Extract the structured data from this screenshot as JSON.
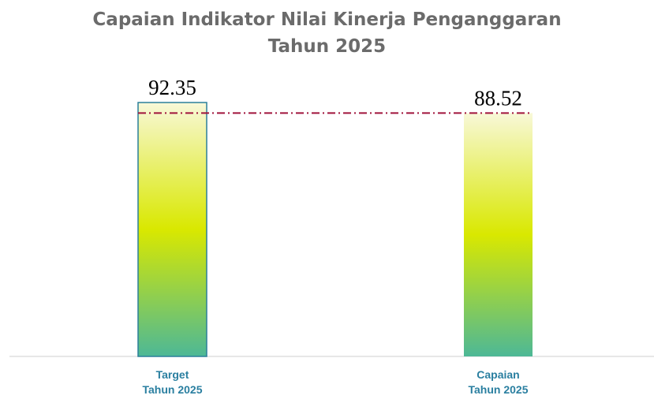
{
  "chart_data": {
    "type": "bar",
    "title": "Capaian Indikator Nilai Kinerja Penganggaran\nTahun 2025",
    "categories": [
      "Target\nTahun 2025",
      "Capaian\nTahun 2025"
    ],
    "values": [
      92.35,
      88.52
    ],
    "colors": [
      "#f8f8d8",
      "#d9e800",
      "#4db896"
    ],
    "outline_color": "#2a7f9a",
    "reference_color": "#a0143c"
  }
}
